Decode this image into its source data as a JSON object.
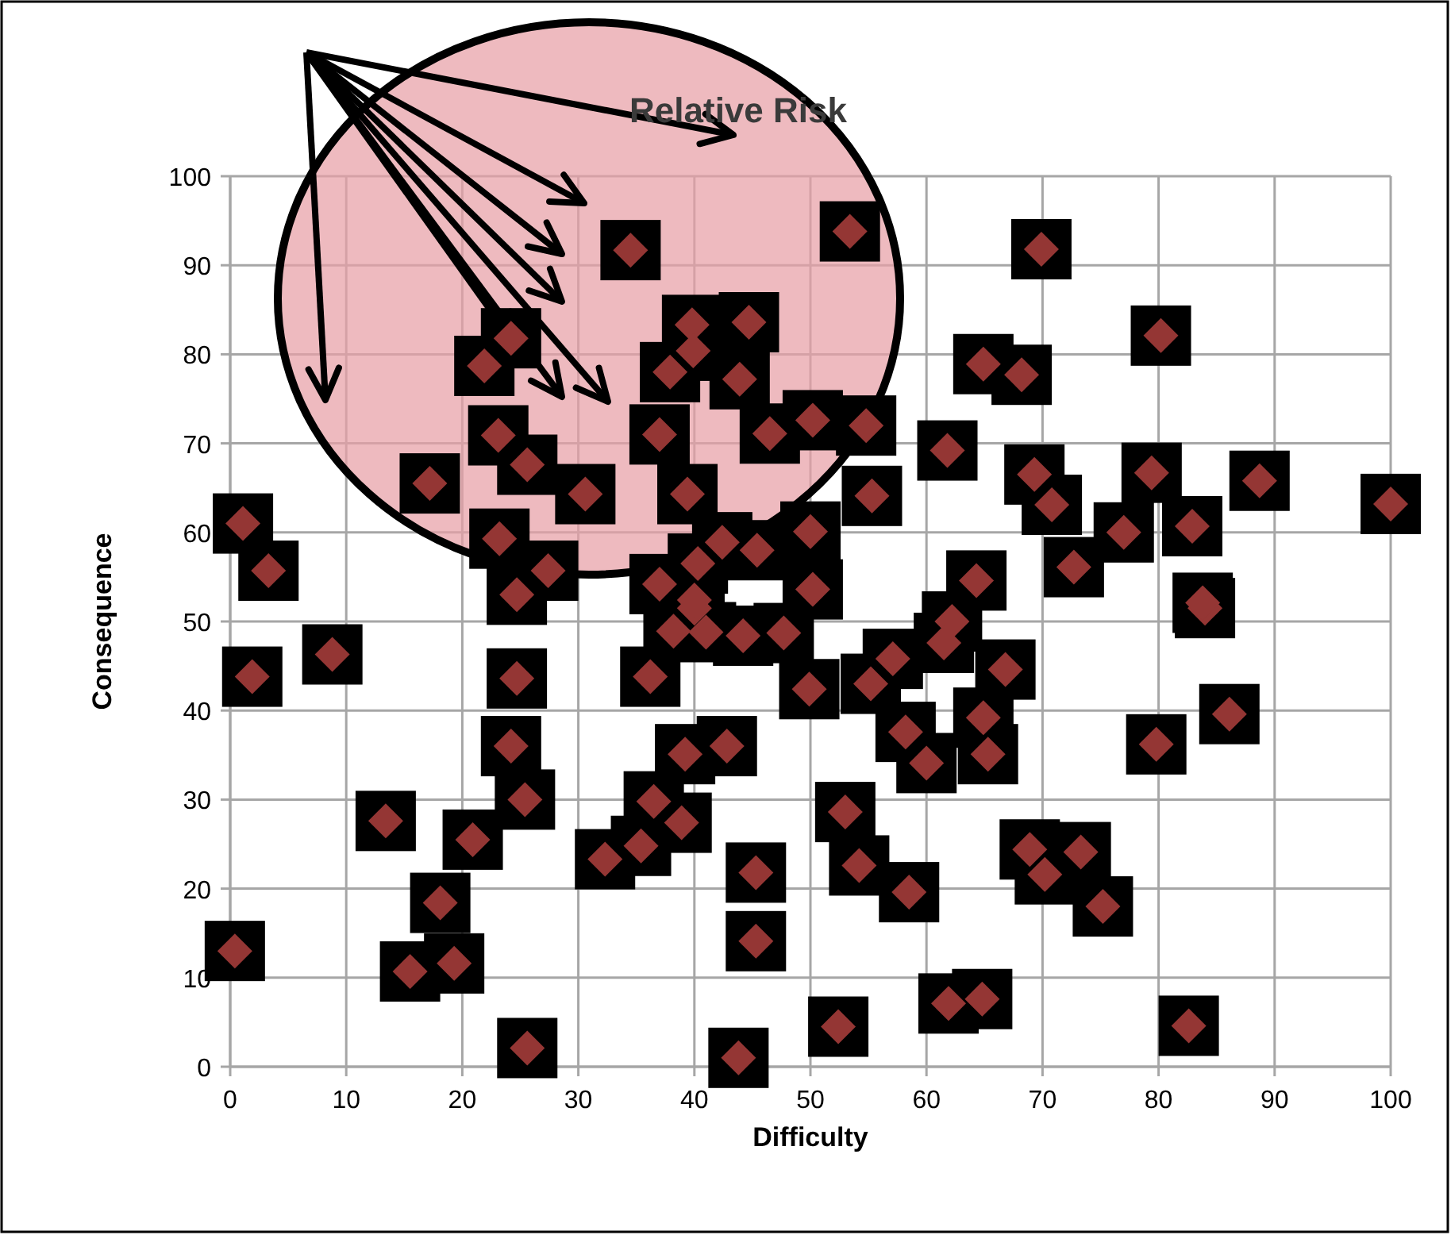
{
  "chart_data": {
    "type": "scatter",
    "title": "Relative Risk",
    "xlabel": "Difficulty",
    "ylabel": "Consequence",
    "xlim": [
      0,
      100
    ],
    "ylim": [
      0,
      100
    ],
    "xticks": [
      0,
      10,
      20,
      30,
      40,
      50,
      60,
      70,
      80,
      90,
      100
    ],
    "yticks": [
      0,
      10,
      20,
      30,
      40,
      50,
      60,
      70,
      80,
      90,
      100
    ],
    "grid": true,
    "marker": "diamond",
    "series": [
      {
        "color": "#943634",
        "x": [
          0.4,
          1.1,
          3.3,
          1.9,
          8.8,
          13.4,
          15.5,
          19.3,
          18.1,
          20.9,
          24.7,
          24.2,
          25.4,
          25.6,
          36.2,
          39.2,
          42.8,
          36.5,
          38.9,
          32.3,
          35.4,
          45.3,
          45.3,
          43.8,
          40,
          38.2,
          41,
          47.7,
          44.2,
          49.9,
          55.2,
          57.1,
          62.2,
          61.5,
          66.8,
          58.2,
          60,
          64.9,
          65.3,
          79.8,
          86.1,
          53,
          54.2,
          58.5,
          68.9,
          73.3,
          70.2,
          75.2,
          52.4,
          61.9,
          64.8,
          82.6,
          84,
          53.4,
          69.9,
          80.2,
          64.9,
          68.2,
          61.8,
          55.3,
          50.2,
          54.8,
          69.3,
          70.8,
          79.4,
          88.7,
          100,
          77,
          82.9,
          72.7,
          50,
          50.2,
          64.3,
          83.8,
          34.5,
          39.8,
          44.7,
          39.9,
          37.9,
          43.9,
          24.2,
          21.9,
          23.1,
          25.6,
          30.6,
          37,
          39.4,
          46.5,
          17.2,
          23.2,
          27.4,
          24.7,
          37,
          40,
          45.4,
          42.4,
          40.3
        ],
        "values": [
          13,
          61,
          55.7,
          43.8,
          46.3,
          27.6,
          10.7,
          11.6,
          18.4,
          25.5,
          43.6,
          36,
          30,
          2.1,
          43.8,
          35.1,
          36,
          29.8,
          27.4,
          23.3,
          24.8,
          21.8,
          14.1,
          1,
          51.5,
          48.9,
          48.8,
          48.7,
          48.4,
          42.4,
          43,
          45.8,
          50,
          47.6,
          44.6,
          37.6,
          34.1,
          39.2,
          35.1,
          36.2,
          39.6,
          28.6,
          22.6,
          19.6,
          24.4,
          24.1,
          21.6,
          18,
          4.5,
          7.1,
          7.6,
          4.6,
          51.5,
          93.8,
          91.8,
          82.1,
          78.9,
          77.7,
          69.2,
          64.1,
          72.6,
          72,
          66.5,
          63.1,
          66.7,
          65.8,
          63.2,
          60,
          60.7,
          56.1,
          60.1,
          53.6,
          54.6,
          52.1,
          91.7,
          83.3,
          83.6,
          80.4,
          78,
          77.2,
          81.8,
          78.7,
          70.9,
          67.6,
          64.3,
          71,
          64.3,
          71.1,
          65.5,
          59.3,
          55.7,
          53,
          54.2,
          52.4,
          58,
          58.9,
          56.5
        ]
      }
    ]
  }
}
